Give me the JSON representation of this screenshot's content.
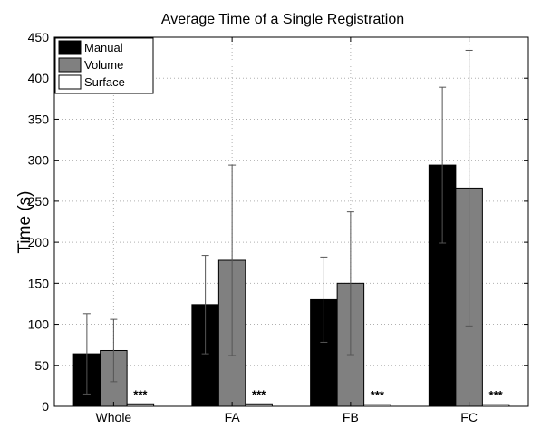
{
  "chart_data": {
    "type": "bar",
    "title": "Average Time of a Single Registration",
    "xlabel": "",
    "ylabel": "Time (s)",
    "ylim": [
      0,
      450
    ],
    "yticks": [
      0,
      50,
      100,
      150,
      200,
      250,
      300,
      350,
      400,
      450
    ],
    "categories": [
      "Whole",
      "FA",
      "FB",
      "FC"
    ],
    "grid": true,
    "legend_position": "top-left",
    "series": [
      {
        "name": "Manual",
        "color": "#000000",
        "values": [
          64,
          124,
          130,
          294
        ],
        "error": [
          49,
          60,
          52,
          95
        ]
      },
      {
        "name": "Volume",
        "color": "#808080",
        "values": [
          68,
          178,
          150,
          266
        ],
        "error": [
          38,
          116,
          87,
          168
        ]
      },
      {
        "name": "Surface",
        "color": "#ffffff",
        "values": [
          3,
          3,
          2,
          2
        ],
        "error": [
          0,
          0,
          0,
          0
        ]
      }
    ],
    "annotations": [
      "***",
      "***",
      "***",
      "***"
    ]
  }
}
